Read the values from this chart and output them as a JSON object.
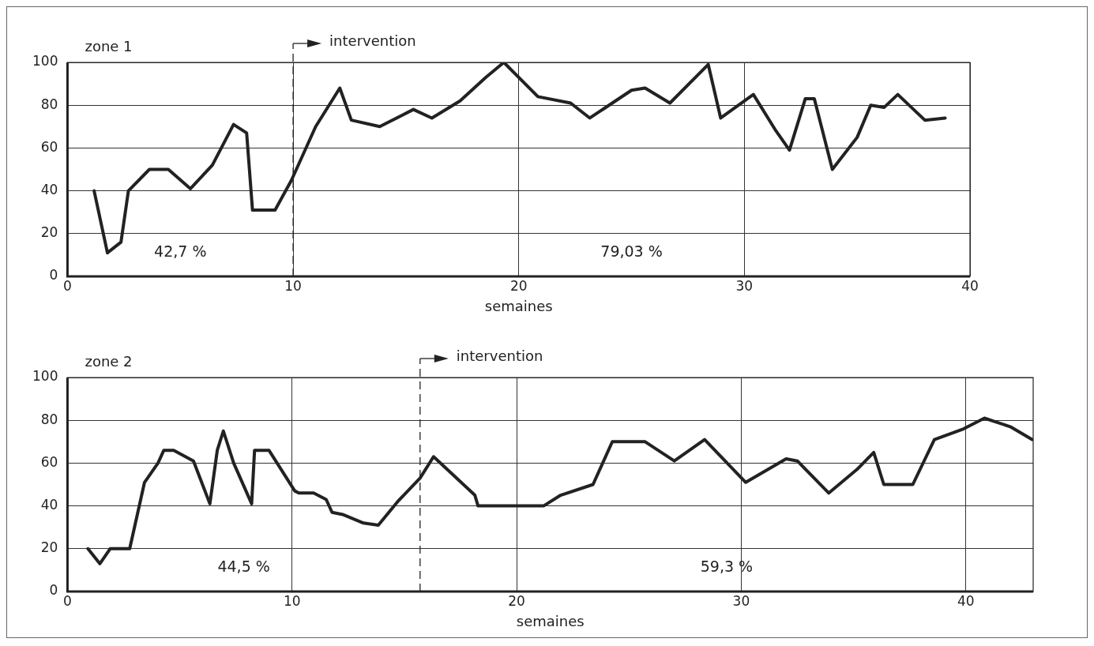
{
  "chart_data": [
    {
      "type": "line",
      "title": "zone 1",
      "xlabel": "semaines",
      "color": "#222222",
      "marker": "none",
      "line_style": "solid",
      "grid": true,
      "x": [
        1.18,
        1.77,
        2.37,
        2.7,
        3.63,
        4.47,
        5.45,
        6.42,
        7.36,
        7.94,
        8.2,
        9.2,
        9.93,
        11.0,
        12.07,
        12.58,
        13.84,
        15.33,
        16.15,
        17.4,
        18.54,
        19.34,
        20.85,
        22.3,
        23.15,
        25.0,
        25.6,
        26.7,
        28.4,
        28.95,
        30.4,
        31.4,
        32.0,
        32.7,
        33.1,
        33.9,
        35.0,
        35.6,
        36.2,
        36.8,
        38.0,
        38.9
      ],
      "values": [
        40,
        11,
        16,
        40,
        50,
        50,
        41,
        52,
        71,
        67,
        31,
        31,
        45,
        70,
        88,
        73,
        70,
        78,
        74,
        82,
        93,
        100,
        84,
        81,
        74,
        87,
        88,
        81,
        99,
        74,
        85,
        68,
        59,
        83,
        83,
        50,
        65,
        80,
        79,
        85,
        73,
        74
      ],
      "xlim": [
        0,
        40
      ],
      "ylim": [
        0,
        100
      ],
      "xticks": [
        0,
        10,
        20,
        30,
        40
      ],
      "yticks": [
        0,
        20,
        40,
        60,
        80,
        100
      ],
      "ref_lines": [
        {
          "axis": "x",
          "value": 10,
          "label": "intervention",
          "line_style": "dashed"
        }
      ],
      "annotations": [
        "42,7 %",
        "79,03 %"
      ]
    },
    {
      "type": "line",
      "title": "zone 2",
      "xlabel": "semaines",
      "color": "#222222",
      "marker": "none",
      "line_style": "solid",
      "grid": true,
      "x": [
        0.91,
        1.44,
        1.9,
        2.77,
        3.43,
        4.03,
        4.29,
        4.73,
        5.61,
        6.34,
        6.67,
        6.94,
        7.4,
        8.2,
        8.33,
        8.97,
        10.12,
        10.3,
        10.96,
        11.52,
        11.78,
        12.25,
        13.18,
        13.84,
        14.7,
        15.7,
        16.3,
        18.14,
        18.28,
        21.2,
        21.96,
        23.4,
        24.26,
        25.72,
        27.02,
        28.37,
        30.2,
        32.0,
        32.5,
        33.9,
        35.15,
        35.9,
        36.35,
        37.64,
        38.6,
        39.9,
        40.83,
        41.98,
        42.95
      ],
      "values": [
        20,
        13,
        20,
        20,
        51,
        60,
        66,
        66,
        61,
        41,
        66,
        75,
        60,
        41,
        66,
        66,
        47,
        46,
        46,
        43,
        37,
        36,
        32,
        31,
        42,
        53,
        63,
        45,
        40,
        40,
        45,
        50,
        70,
        70,
        61,
        71,
        51,
        62,
        61,
        46,
        57,
        65,
        50,
        50,
        71,
        76,
        81,
        77,
        71
      ],
      "xlim": [
        0,
        43
      ],
      "ylim": [
        0,
        100
      ],
      "xticks": [
        0,
        10,
        20,
        30,
        40
      ],
      "yticks": [
        0,
        20,
        40,
        60,
        80,
        100
      ],
      "ref_lines": [
        {
          "axis": "x",
          "value": 15.7,
          "label": "intervention",
          "line_style": "dashed"
        }
      ],
      "annotations": [
        "44,5 %",
        "59,3 %"
      ]
    }
  ]
}
